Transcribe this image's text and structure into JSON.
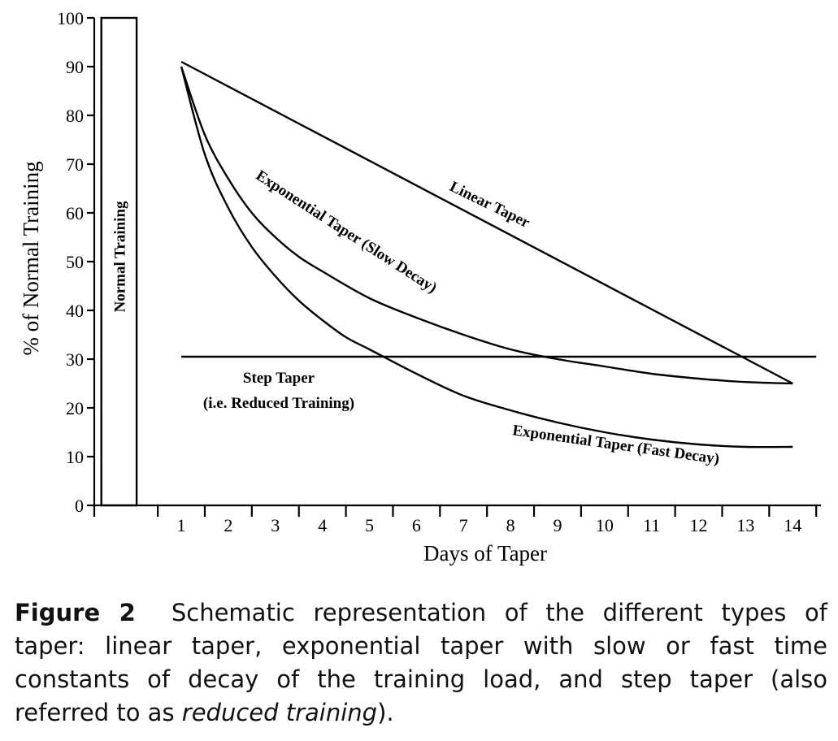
{
  "chart_data": {
    "type": "line",
    "title": "",
    "xlabel": "Days of Taper",
    "ylabel": "% of Normal Training",
    "xlim": [
      -0.85,
      14.6
    ],
    "ylim": [
      0,
      100
    ],
    "x_ticks": [
      1,
      2,
      3,
      4,
      5,
      6,
      7,
      8,
      9,
      10,
      11,
      12,
      13,
      14
    ],
    "y_ticks": [
      0,
      10,
      20,
      30,
      40,
      50,
      60,
      70,
      80,
      90,
      100
    ],
    "bar": {
      "label": "Normal Training",
      "x_range": [
        -0.7,
        0.05
      ],
      "value": 100
    },
    "series": [
      {
        "name": "Linear Taper",
        "x": [
          1,
          14
        ],
        "y": [
          91,
          25
        ]
      },
      {
        "name": "Exponential Taper (Slow Decay)",
        "x": [
          1,
          1.5,
          2,
          2.5,
          3,
          3.5,
          4,
          5,
          6,
          7,
          8,
          9,
          10,
          11,
          12,
          13,
          14
        ],
        "y": [
          90,
          76,
          67,
          60,
          55,
          51,
          48,
          42.5,
          38.5,
          35,
          32,
          30,
          28.5,
          27,
          26,
          25.3,
          25
        ]
      },
      {
        "name": "Exponential Taper (Fast Decay)",
        "x": [
          1,
          1.5,
          2,
          2.5,
          3,
          3.5,
          4,
          4.5,
          5,
          6,
          7,
          8,
          9,
          10,
          11,
          12,
          13,
          14
        ],
        "y": [
          90,
          72,
          61,
          53,
          47,
          42,
          38,
          34.5,
          32,
          27,
          22.5,
          19.5,
          17,
          15,
          13.5,
          12.5,
          12,
          12
        ]
      },
      {
        "name": "Step Taper",
        "x": [
          1,
          14.5
        ],
        "y": [
          30.5,
          30.5
        ]
      }
    ],
    "annotations": {
      "linear": "Linear Taper",
      "exp_slow": "Exponential Taper (Slow Decay)",
      "exp_fast": "Exponential Taper (Fast Decay)",
      "step_line1": "Step Taper",
      "step_line2": "(i.e. Reduced Training)"
    }
  },
  "caption": {
    "label": "Figure 2",
    "line1": "Schematic representation of the different types of",
    "line2": "taper: linear taper, exponential taper with slow or fast time",
    "line3": "constants of decay of the training load, and step taper (also",
    "line4_pre": "referred to as ",
    "line4_italic": "reduced training",
    "line4_post": ")."
  }
}
